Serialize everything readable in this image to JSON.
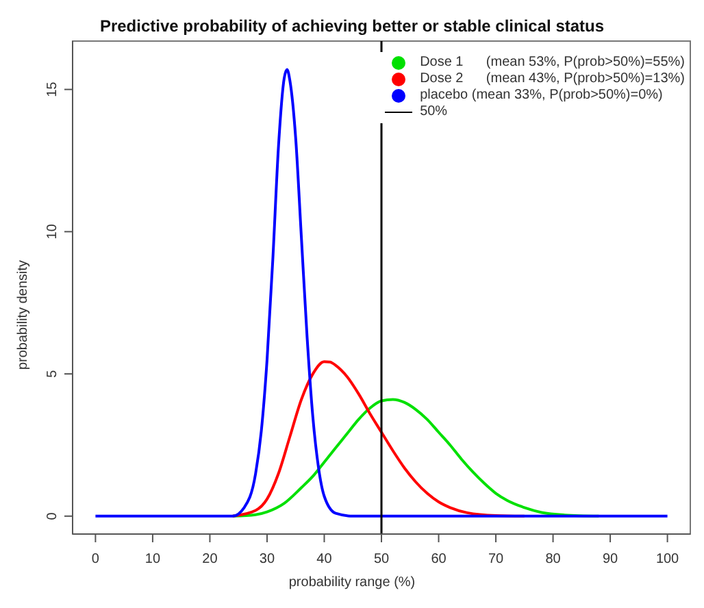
{
  "chart_data": {
    "type": "line",
    "title": "Predictive probability of achieving better or stable clinical status",
    "xlabel": "probability range (%)",
    "ylabel": "probability density",
    "xlim": [
      -4,
      104
    ],
    "xticks": [
      0,
      10,
      20,
      30,
      40,
      50,
      60,
      70,
      80,
      90,
      100
    ],
    "ylim": [
      -0.63,
      16.7
    ],
    "yticks": [
      0,
      5,
      10,
      15
    ],
    "grid": false,
    "legend": "top right",
    "marker": "none",
    "line_style": "solid",
    "series": [
      {
        "name": "Dose 1      (mean 53%, P(prob>50%)=55%)",
        "color": "#00e000",
        "x": [
          24,
          28,
          30,
          33,
          36,
          38,
          40,
          42,
          44,
          46,
          48,
          50,
          52,
          54,
          56,
          58,
          60,
          62,
          64,
          66,
          68,
          70,
          72,
          75,
          78,
          82,
          88
        ],
        "values": [
          0,
          0.05,
          0.15,
          0.45,
          1.0,
          1.4,
          1.9,
          2.4,
          2.9,
          3.4,
          3.8,
          4.05,
          4.1,
          4.0,
          3.75,
          3.4,
          2.95,
          2.5,
          2.0,
          1.55,
          1.15,
          0.8,
          0.55,
          0.3,
          0.13,
          0.04,
          0
        ]
      },
      {
        "name": "Dose 2      (mean 43%, P(prob>50%)=13%)",
        "color": "#ff0000",
        "x": [
          24,
          28,
          30,
          32,
          34,
          36,
          38,
          40,
          41,
          42,
          44,
          46,
          48,
          50,
          52,
          54,
          56,
          58,
          60,
          62,
          65,
          70,
          75
        ],
        "values": [
          0,
          0.2,
          0.6,
          1.5,
          2.8,
          4.1,
          5.0,
          5.43,
          5.42,
          5.3,
          4.9,
          4.3,
          3.6,
          2.95,
          2.3,
          1.7,
          1.2,
          0.8,
          0.5,
          0.3,
          0.12,
          0.02,
          0
        ]
      },
      {
        "name": "placebo (mean 33%, P(prob>50%)=0%)",
        "color": "#0000ff",
        "x": [
          0,
          20,
          24,
          26,
          28,
          29,
          30,
          31,
          32,
          33,
          33.5,
          34,
          35,
          36,
          37,
          38,
          39,
          40,
          42,
          45,
          100
        ],
        "values": [
          0,
          0,
          0,
          0.3,
          1.5,
          3,
          5.5,
          9,
          13,
          15.4,
          15.7,
          15.3,
          13.3,
          9.8,
          6.3,
          3.5,
          1.7,
          0.7,
          0.1,
          0,
          0
        ]
      }
    ],
    "ref_lines": [
      {
        "axis": "x",
        "value": 50,
        "label": "50%",
        "color": "#000000",
        "line_style": "solid"
      }
    ]
  }
}
